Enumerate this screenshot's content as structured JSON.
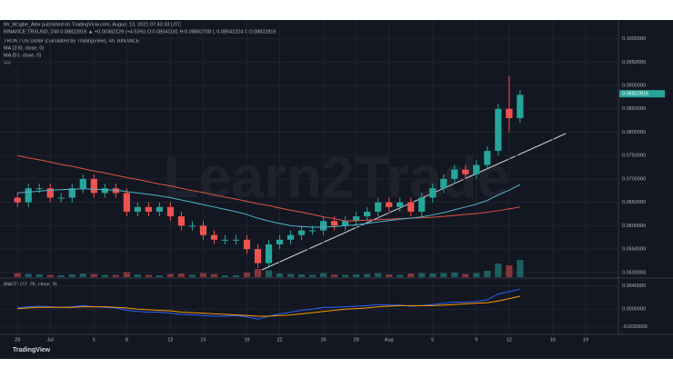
{
  "chart_data": {
    "type": "candlestick",
    "header": [
      "Mr_Wogbe_Alex published on TradingView.com, August 13, 2021 07:43:33 UTC",
      "BINANCE:TRXUSD, 240  0.08822816 ▲ +0.00382129 (+4.53%)  O:0.08541181  H:0.08862708  L:0.08541024  C:0.08822816"
    ],
    "title": "TRON / US Dollar (calculated by TradingView), 4h, BINANCE",
    "watermark": "Learn2Trade",
    "brand": "TradingView",
    "up_color": "#26a69a",
    "down_color": "#ef5350",
    "x": [
      0,
      1,
      2,
      3,
      4,
      5,
      6,
      7,
      8,
      9,
      10,
      11,
      12,
      13,
      14,
      15,
      16,
      17,
      18,
      19,
      20,
      21,
      22,
      23,
      24,
      25,
      26,
      27,
      28,
      29,
      30,
      31,
      32,
      33,
      34,
      35,
      36,
      37,
      38,
      39,
      40,
      41,
      42,
      43,
      44,
      45,
      46
    ],
    "open": [
      0.066,
      0.065,
      0.068,
      0.068,
      0.066,
      0.066,
      0.068,
      0.07,
      0.067,
      0.068,
      0.067,
      0.063,
      0.064,
      0.063,
      0.064,
      0.062,
      0.06,
      0.06,
      0.058,
      0.057,
      0.057,
      0.057,
      0.055,
      0.052,
      0.056,
      0.057,
      0.058,
      0.059,
      0.059,
      0.061,
      0.06,
      0.061,
      0.062,
      0.063,
      0.065,
      0.064,
      0.065,
      0.063,
      0.066,
      0.068,
      0.07,
      0.072,
      0.071,
      0.073,
      0.076,
      0.085,
      0.083
    ],
    "high": [
      0.067,
      0.069,
      0.069,
      0.069,
      0.067,
      0.069,
      0.071,
      0.071,
      0.069,
      0.069,
      0.068,
      0.065,
      0.065,
      0.065,
      0.065,
      0.063,
      0.061,
      0.061,
      0.059,
      0.058,
      0.058,
      0.058,
      0.056,
      0.057,
      0.058,
      0.059,
      0.06,
      0.06,
      0.062,
      0.062,
      0.062,
      0.063,
      0.064,
      0.066,
      0.066,
      0.066,
      0.066,
      0.067,
      0.069,
      0.071,
      0.073,
      0.073,
      0.074,
      0.077,
      0.086,
      0.092,
      0.089
    ],
    "low": [
      0.064,
      0.064,
      0.067,
      0.065,
      0.065,
      0.065,
      0.067,
      0.066,
      0.066,
      0.066,
      0.062,
      0.062,
      0.062,
      0.062,
      0.061,
      0.059,
      0.059,
      0.057,
      0.056,
      0.056,
      0.056,
      0.054,
      0.051,
      0.051,
      0.055,
      0.056,
      0.057,
      0.058,
      0.058,
      0.059,
      0.059,
      0.06,
      0.061,
      0.062,
      0.063,
      0.063,
      0.062,
      0.062,
      0.065,
      0.067,
      0.069,
      0.07,
      0.07,
      0.072,
      0.075,
      0.08,
      0.082
    ],
    "close": [
      0.065,
      0.068,
      0.068,
      0.066,
      0.066,
      0.068,
      0.07,
      0.067,
      0.068,
      0.067,
      0.063,
      0.064,
      0.063,
      0.064,
      0.062,
      0.06,
      0.06,
      0.058,
      0.057,
      0.057,
      0.057,
      0.055,
      0.052,
      0.056,
      0.057,
      0.058,
      0.059,
      0.059,
      0.061,
      0.06,
      0.061,
      0.062,
      0.063,
      0.065,
      0.064,
      0.065,
      0.063,
      0.066,
      0.068,
      0.07,
      0.072,
      0.071,
      0.073,
      0.076,
      0.085,
      0.083,
      0.088
    ],
    "series": [
      {
        "name": "MA (200, close, 0)",
        "color": "#e0533f",
        "values": [
          0.075,
          0.0745,
          0.0741,
          0.0736,
          0.0731,
          0.0727,
          0.0722,
          0.0717,
          0.0713,
          0.0708,
          0.0703,
          0.0699,
          0.0694,
          0.0689,
          0.0685,
          0.068,
          0.0675,
          0.0671,
          0.0666,
          0.0661,
          0.0657,
          0.0652,
          0.0647,
          0.0643,
          0.0638,
          0.0633,
          0.0629,
          0.0624,
          0.0619,
          0.0615,
          0.061,
          0.0611,
          0.0612,
          0.0613,
          0.0614,
          0.0615,
          0.0616,
          0.0617,
          0.0618,
          0.062,
          0.0622,
          0.0624,
          0.0626,
          0.0629,
          0.0632,
          0.0636,
          0.064
        ]
      },
      {
        "name": "MA (50, close, 0)",
        "color": "#4fb3c9",
        "values": [
          0.067,
          0.0672,
          0.0674,
          0.0676,
          0.0677,
          0.0678,
          0.0679,
          0.0678,
          0.0677,
          0.0676,
          0.0673,
          0.067,
          0.0667,
          0.0664,
          0.066,
          0.0655,
          0.065,
          0.0645,
          0.064,
          0.0635,
          0.063,
          0.0624,
          0.0616,
          0.061,
          0.0605,
          0.06,
          0.0598,
          0.0597,
          0.0597,
          0.0598,
          0.06,
          0.0602,
          0.0605,
          0.0608,
          0.0611,
          0.0614,
          0.0616,
          0.0619,
          0.0623,
          0.0628,
          0.0634,
          0.064,
          0.0646,
          0.0654,
          0.0666,
          0.0676,
          0.0688
        ]
      }
    ],
    "volume": {
      "name": "Vol",
      "lim": [
        0,
        800
      ],
      "values": [
        90,
        70,
        60,
        50,
        40,
        60,
        80,
        70,
        50,
        50,
        110,
        60,
        50,
        40,
        70,
        80,
        50,
        90,
        70,
        40,
        40,
        100,
        180,
        150,
        80,
        70,
        60,
        50,
        90,
        60,
        50,
        60,
        70,
        90,
        60,
        50,
        80,
        90,
        80,
        90,
        100,
        70,
        90,
        140,
        300,
        260,
        380
      ]
    },
    "ylim": [
      0.049,
      0.104
    ],
    "yticks": [
      {
        "value": 0.05,
        "label": "0.0500000"
      },
      {
        "value": 0.055,
        "label": "0.0550000"
      },
      {
        "value": 0.06,
        "label": "0.0600000"
      },
      {
        "value": 0.065,
        "label": "0.0650000"
      },
      {
        "value": 0.07,
        "label": "0.0700000"
      },
      {
        "value": 0.075,
        "label": "0.0750000"
      },
      {
        "value": 0.08,
        "label": "0.0800000"
      },
      {
        "value": 0.085,
        "label": "0.0850000"
      },
      {
        "value": 0.09,
        "label": "0.0900000"
      },
      {
        "value": 0.095,
        "label": "0.0950000"
      },
      {
        "value": 0.1,
        "label": "0.1000000"
      }
    ],
    "last_price": 0.08822816,
    "xlim": [
      -1.6,
      55
    ],
    "xticks": [
      {
        "value": 0,
        "label": "28"
      },
      {
        "value": 3,
        "label": "Jul"
      },
      {
        "value": 7,
        "label": "5"
      },
      {
        "value": 10,
        "label": "8"
      },
      {
        "value": 14,
        "label": "12"
      },
      {
        "value": 17,
        "label": "15"
      },
      {
        "value": 21,
        "label": "19"
      },
      {
        "value": 24,
        "label": "22"
      },
      {
        "value": 28,
        "label": "26"
      },
      {
        "value": 31,
        "label": "29"
      },
      {
        "value": 34,
        "label": "Aug"
      },
      {
        "value": 38,
        "label": "5"
      },
      {
        "value": 42,
        "label": "9"
      },
      {
        "value": 45,
        "label": "12"
      },
      {
        "value": 49,
        "label": "16"
      },
      {
        "value": 52,
        "label": "19"
      }
    ],
    "macd": {
      "name": "MACD (12, 26, close, 9)",
      "ylim": [
        -0.004,
        0.005
      ],
      "yticks": [
        {
          "value": 0.004,
          "label": "0.0040000"
        },
        {
          "value": 0,
          "label": "0.0000000"
        },
        {
          "value": -0.003,
          "label": "-0.0030000"
        }
      ],
      "series": [
        {
          "color": "#2962ff",
          "values": [
            0.0002,
            0.0004,
            0.0005,
            0.0004,
            0.0003,
            0.0004,
            0.0006,
            0.0004,
            0.0003,
            0.0002,
            -0.0002,
            -0.0004,
            -0.0005,
            -0.0005,
            -0.0007,
            -0.0009,
            -0.001,
            -0.0011,
            -0.0012,
            -0.0012,
            -0.0011,
            -0.0013,
            -0.0017,
            -0.0012,
            -0.0008,
            -0.0005,
            -0.0002,
            0,
            0.0003,
            0.0003,
            0.0004,
            0.0005,
            0.0006,
            0.0008,
            0.0007,
            0.0007,
            0.0005,
            0.0006,
            0.0008,
            0.001,
            0.0012,
            0.0012,
            0.0013,
            0.0016,
            0.0026,
            0.003,
            0.0034
          ]
        },
        {
          "color": "#ff9800",
          "values": [
            0.0001,
            0.0002,
            0.0003,
            0.0003,
            0.0003,
            0.0003,
            0.0004,
            0.0004,
            0.0004,
            0.0003,
            0.0002,
            0,
            -0.0001,
            -0.0002,
            -0.0003,
            -0.0005,
            -0.0006,
            -0.0007,
            -0.0008,
            -0.0009,
            -0.001,
            -0.0011,
            -0.0012,
            -0.0012,
            -0.0011,
            -0.001,
            -0.0008,
            -0.0006,
            -0.0004,
            -0.0002,
            0,
            0.0001,
            0.0002,
            0.0004,
            0.0005,
            0.0006,
            0.0006,
            0.0006,
            0.0006,
            0.0007,
            0.0008,
            0.0009,
            0.001,
            0.0011,
            0.0014,
            0.0018,
            0.0022
          ]
        }
      ]
    }
  }
}
